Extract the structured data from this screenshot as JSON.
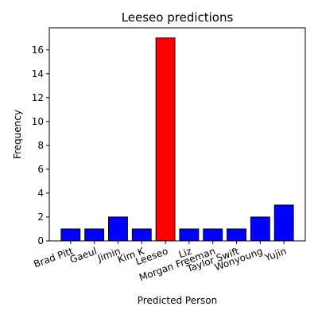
{
  "chart_data": {
    "type": "bar",
    "title": "Leeseo predictions",
    "xlabel": "Predicted Person",
    "ylabel": "Frequency",
    "categories": [
      "Brad Pitt",
      "Gaeul",
      "Jimin",
      "Kim K",
      "Leeseo",
      "Liz",
      "Morgan Freeman",
      "Taylor Swift",
      "Wonyoung",
      "Yujin"
    ],
    "values": [
      1,
      1,
      2,
      1,
      17,
      1,
      1,
      1,
      2,
      3
    ],
    "colors": [
      "#0000ff",
      "#0000ff",
      "#0000ff",
      "#0000ff",
      "#ff0000",
      "#0000ff",
      "#0000ff",
      "#0000ff",
      "#0000ff",
      "#0000ff"
    ],
    "ylim": [
      0,
      17.85
    ],
    "yticks": [
      0,
      2,
      4,
      6,
      8,
      10,
      12,
      14,
      16
    ],
    "grid": false,
    "xtick_rotation": 20
  }
}
